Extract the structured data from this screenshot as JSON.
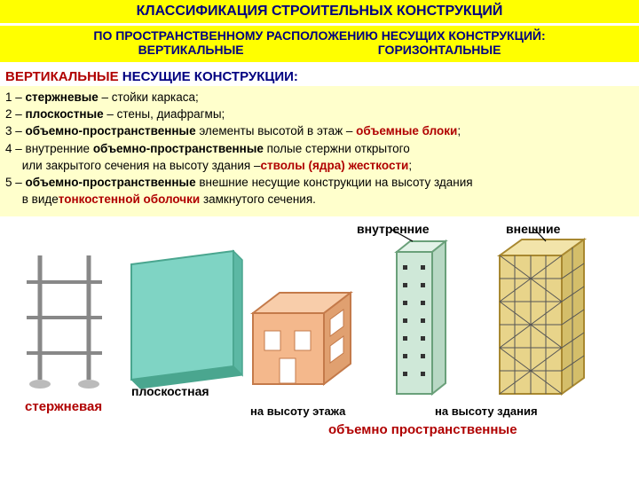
{
  "title": "КЛАССИФИКАЦИЯ СТРОИТЕЛЬНЫХ КОНСТРУКЦИЙ",
  "subtitle_line1": "ПО ПРОСТРАНСТВЕННОМУ РАСПОЛОЖЕНИЮ НЕСУЩИХ КОНСТРУКЦИЙ:",
  "subtitle_col1": "ВЕРТИКАЛЬНЫЕ",
  "subtitle_col2": "ГОРИЗОНТАЛЬНЫЕ",
  "section_header_pre": "ВЕРТИКАЛЬНЫЕ ",
  "section_header_post": "НЕСУЩИЕ КОНСТРУКЦИИ:",
  "items": [
    {
      "n": "1",
      "t1": "стержневые",
      "t2": " – стойки каркаса;"
    },
    {
      "n": "2",
      "t1": "плоскостные",
      "t2": " – стены, диафрагмы;"
    },
    {
      "n": "3",
      "t1": "объемно-пространственные",
      "t2": " элементы высотой в этаж – ",
      "t3": "объемные блоки",
      "t4": ";"
    },
    {
      "n": "4",
      "t2a": "внутренние ",
      "t1": "объемно-пространственные",
      "t2b": " полые стержни открытого",
      "cont": "     или закрытого сечения на высоту здания – ",
      "t3": "стволы (ядра) жесткости",
      "t4": ";"
    },
    {
      "n": "5",
      "t1": "объемно-пространственные",
      "t2": " внешние несущие конструкции на высоту здания",
      "cont": "     в виде ",
      "t3": "тонкостенной оболочки",
      "t4": " замкнутого сечения."
    }
  ],
  "labels": {
    "inner": "внутренние",
    "outer": "внешние",
    "planar": "плоскостная",
    "rod": "стержневая",
    "height_floor": "на высоту этажа",
    "height_building": "на высоту здания",
    "volumetric": "объемно пространственные"
  },
  "colors": {
    "yellow_bar": "#ffff00",
    "yellow_bg": "#ffffcc",
    "navy": "#000080",
    "red": "#b00000",
    "wall": "#7fd4c4",
    "wall_edge": "#4aa68f",
    "block": "#f4b88c",
    "block_edge": "#c47a4a",
    "core": "#cfe8d8",
    "core_edge": "#6aa07a",
    "shell": "#e8d48a",
    "shell_edge": "#a88830",
    "rod": "#888888",
    "grid": "#555555"
  }
}
